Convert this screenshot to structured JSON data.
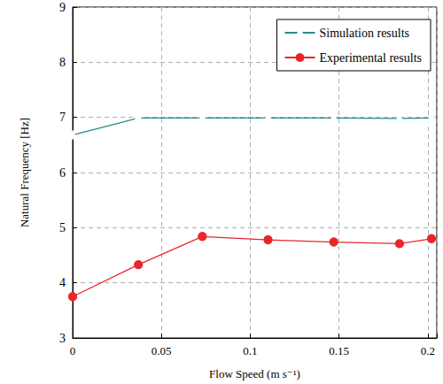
{
  "chart_data": {
    "type": "line",
    "x_label": "Flow Speed (m s⁻¹)",
    "y_label": "Natural Frequency [Hz]",
    "x": [
      0,
      0.037,
      0.073,
      0.11,
      0.147,
      0.184,
      0.202
    ],
    "series": [
      {
        "name": "Simulation results",
        "color": "#2a8a8a",
        "marker": "triangle",
        "values": [
          6.68,
          6.99,
          6.99,
          6.99,
          6.99,
          6.98,
          6.99
        ]
      },
      {
        "name": "Experimental results",
        "color": "#e8262a",
        "marker": "circle",
        "values": [
          3.75,
          4.33,
          4.84,
          4.78,
          4.74,
          4.71,
          4.8
        ]
      }
    ],
    "xlim": [
      0,
      0.205
    ],
    "xticks": [
      0,
      0.05,
      0.1,
      0.15,
      0.2
    ],
    "ylim": [
      3,
      9
    ],
    "yticks": [
      3,
      4,
      5,
      6,
      7,
      8,
      9
    ],
    "grid": true,
    "legend": "upper right"
  }
}
